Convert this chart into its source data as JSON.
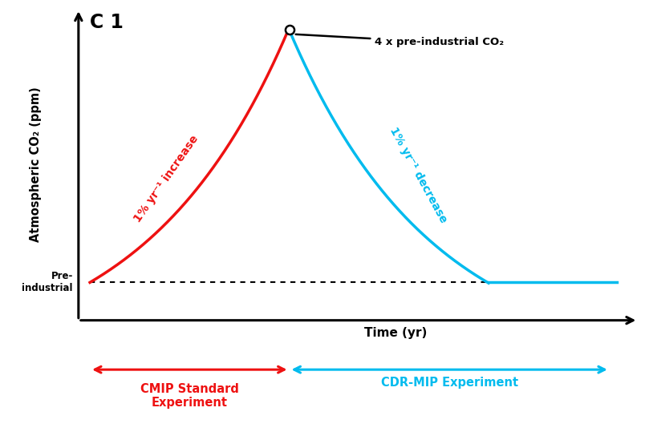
{
  "title": "C 1",
  "ylabel": "Atmospheric CO₂ (ppm)",
  "xlabel": "Time (yr)",
  "background_color": "#ffffff",
  "pre_industrial_label": "Pre-\nindustrial",
  "annotation_text": "4 x pre-industrial CO₂",
  "red_label": "1% yr⁻¹ increase",
  "blue_label": "1% yr⁻¹ decrease",
  "cmip_label": "CMIP Standard\nExperiment",
  "cdr_label": "CDR-MIP Experiment",
  "red_color": "#ee1111",
  "blue_color": "#00bbee",
  "black_color": "#111111",
  "t_start": 0,
  "t_peak": 140,
  "t_end_decrease": 280,
  "t_flat_end": 370,
  "pre_industrial_level": 1.0,
  "peak_level": 4.0,
  "y_min": 0.55,
  "y_max": 4.25,
  "x_min": -10,
  "x_max": 385
}
